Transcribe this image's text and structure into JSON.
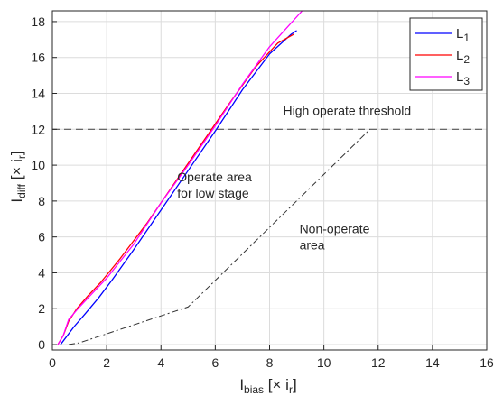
{
  "chart_data": {
    "type": "line",
    "xlabel": {
      "main": "I",
      "sub": "bias",
      "rest": " [× i",
      "rsub": "r",
      "close": "]"
    },
    "ylabel": {
      "main": "I",
      "sub": "diff",
      "rest": " [× i",
      "rsub": "r",
      "close": "]"
    },
    "xlim": [
      0,
      16
    ],
    "ylim": [
      -0.3,
      18.6
    ],
    "xticks": [
      0,
      2,
      4,
      6,
      8,
      10,
      12,
      14,
      16
    ],
    "yticks": [
      0,
      2,
      4,
      6,
      8,
      10,
      12,
      14,
      16,
      18
    ],
    "grid": true,
    "legend_position": "top-right",
    "series": [
      {
        "name": "L",
        "name_sub": "1",
        "color": "#0000ff",
        "x": [
          0.3,
          0.5,
          0.8,
          1.2,
          1.7,
          2.2,
          3.0,
          4.0,
          5.0,
          6.0,
          7.0,
          8.0,
          8.8,
          9.0
        ],
        "y": [
          0.0,
          0.4,
          1.0,
          1.7,
          2.6,
          3.6,
          5.3,
          7.5,
          9.7,
          11.9,
          14.2,
          16.2,
          17.3,
          17.5
        ]
      },
      {
        "name": "L",
        "name_sub": "2",
        "color": "#ff0000",
        "x": [
          0.2,
          0.4,
          0.6,
          0.9,
          1.3,
          1.8,
          2.5,
          3.5,
          4.5,
          5.5,
          6.5,
          7.5,
          8.3,
          8.9
        ],
        "y": [
          0.0,
          0.5,
          1.3,
          2.0,
          2.7,
          3.5,
          4.8,
          6.8,
          9.0,
          11.2,
          13.4,
          15.5,
          16.8,
          17.3
        ]
      },
      {
        "name": "L",
        "name_sub": "3",
        "color": "#ff00ff",
        "x": [
          0.2,
          0.4,
          0.6,
          1.0,
          1.5,
          2.0,
          3.0,
          4.0,
          5.0,
          6.0,
          7.0,
          8.0,
          8.6,
          9.2
        ],
        "y": [
          0.0,
          0.5,
          1.4,
          2.1,
          2.9,
          3.7,
          5.6,
          7.9,
          10.0,
          12.2,
          14.5,
          16.6,
          17.6,
          18.6
        ]
      }
    ],
    "reference_lines": {
      "high_threshold": {
        "x": [
          0,
          16
        ],
        "y": [
          12,
          12
        ]
      },
      "operate_characteristic": {
        "x": [
          0.6,
          1.0,
          5.0,
          11.7
        ],
        "y": [
          0.0,
          0.1,
          2.1,
          12.0
        ]
      }
    },
    "annotations": [
      {
        "text": "High operate threshold",
        "x": 8.5,
        "y": 12.8
      },
      {
        "text": "Operate area",
        "x": 4.6,
        "y": 9.1
      },
      {
        "text": "for low stage",
        "x": 4.6,
        "y": 8.2
      },
      {
        "text": "Non-operate",
        "x": 9.1,
        "y": 6.2
      },
      {
        "text": "area",
        "x": 9.1,
        "y": 5.3
      }
    ]
  }
}
